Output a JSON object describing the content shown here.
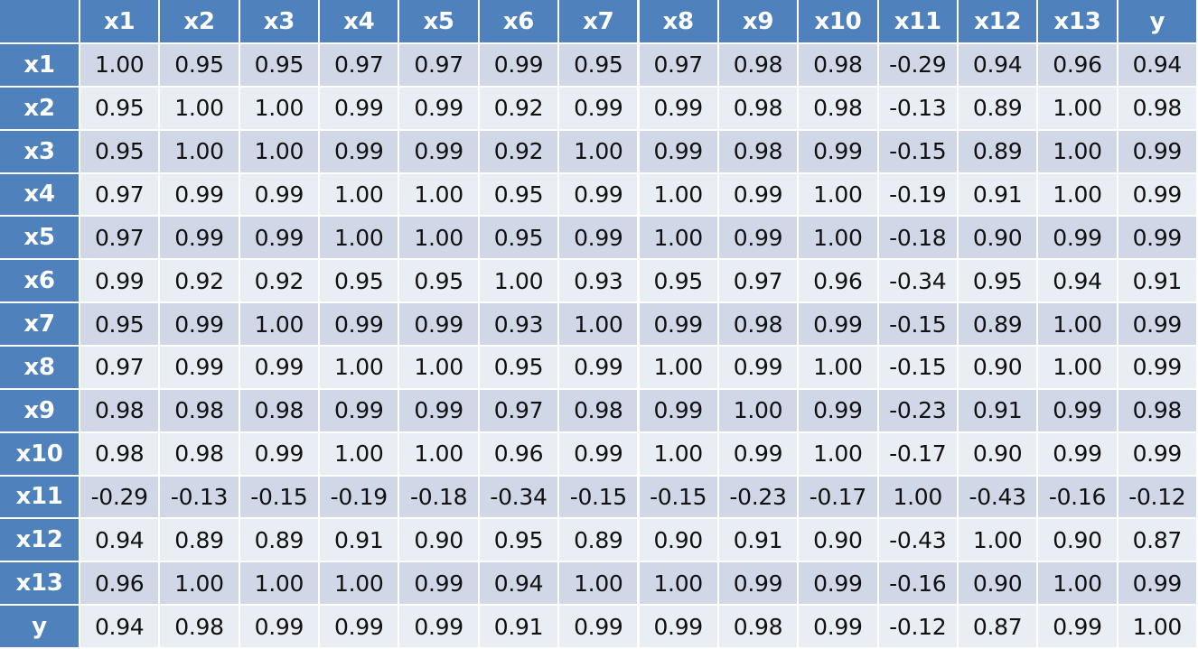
{
  "chart_data": {
    "type": "table",
    "title": "",
    "columns": [
      "x1",
      "x2",
      "x3",
      "x4",
      "x5",
      "x6",
      "x7",
      "x8",
      "x9",
      "x10",
      "x11",
      "x12",
      "x13",
      "y"
    ],
    "rows": [
      "x1",
      "x2",
      "x3",
      "x4",
      "x5",
      "x6",
      "x7",
      "x8",
      "x9",
      "x10",
      "x11",
      "x12",
      "x13",
      "y"
    ],
    "values": [
      [
        "1.00",
        "0.95",
        "0.95",
        "0.97",
        "0.97",
        "0.99",
        "0.95",
        "0.97",
        "0.98",
        "0.98",
        "-0.29",
        "0.94",
        "0.96",
        "0.94"
      ],
      [
        "0.95",
        "1.00",
        "1.00",
        "0.99",
        "0.99",
        "0.92",
        "0.99",
        "0.99",
        "0.98",
        "0.98",
        "-0.13",
        "0.89",
        "1.00",
        "0.98"
      ],
      [
        "0.95",
        "1.00",
        "1.00",
        "0.99",
        "0.99",
        "0.92",
        "1.00",
        "0.99",
        "0.98",
        "0.99",
        "-0.15",
        "0.89",
        "1.00",
        "0.99"
      ],
      [
        "0.97",
        "0.99",
        "0.99",
        "1.00",
        "1.00",
        "0.95",
        "0.99",
        "1.00",
        "0.99",
        "1.00",
        "-0.19",
        "0.91",
        "1.00",
        "0.99"
      ],
      [
        "0.97",
        "0.99",
        "0.99",
        "1.00",
        "1.00",
        "0.95",
        "0.99",
        "1.00",
        "0.99",
        "1.00",
        "-0.18",
        "0.90",
        "0.99",
        "0.99"
      ],
      [
        "0.99",
        "0.92",
        "0.92",
        "0.95",
        "0.95",
        "1.00",
        "0.93",
        "0.95",
        "0.97",
        "0.96",
        "-0.34",
        "0.95",
        "0.94",
        "0.91"
      ],
      [
        "0.95",
        "0.99",
        "1.00",
        "0.99",
        "0.99",
        "0.93",
        "1.00",
        "0.99",
        "0.98",
        "0.99",
        "-0.15",
        "0.89",
        "1.00",
        "0.99"
      ],
      [
        "0.97",
        "0.99",
        "0.99",
        "1.00",
        "1.00",
        "0.95",
        "0.99",
        "1.00",
        "0.99",
        "1.00",
        "-0.15",
        "0.90",
        "1.00",
        "0.99"
      ],
      [
        "0.98",
        "0.98",
        "0.98",
        "0.99",
        "0.99",
        "0.97",
        "0.98",
        "0.99",
        "1.00",
        "0.99",
        "-0.23",
        "0.91",
        "0.99",
        "0.98"
      ],
      [
        "0.98",
        "0.98",
        "0.99",
        "1.00",
        "1.00",
        "0.96",
        "0.99",
        "1.00",
        "0.99",
        "1.00",
        "-0.17",
        "0.90",
        "0.99",
        "0.99"
      ],
      [
        "-0.29",
        "-0.13",
        "-0.15",
        "-0.19",
        "-0.18",
        "-0.34",
        "-0.15",
        "-0.15",
        "-0.23",
        "-0.17",
        "1.00",
        "-0.43",
        "-0.16",
        "-0.12"
      ],
      [
        "0.94",
        "0.89",
        "0.89",
        "0.91",
        "0.90",
        "0.95",
        "0.89",
        "0.90",
        "0.91",
        "0.90",
        "-0.43",
        "1.00",
        "0.90",
        "0.87"
      ],
      [
        "0.96",
        "1.00",
        "1.00",
        "1.00",
        "0.99",
        "0.94",
        "1.00",
        "1.00",
        "0.99",
        "0.99",
        "-0.16",
        "0.90",
        "1.00",
        "0.99"
      ],
      [
        "0.94",
        "0.98",
        "0.99",
        "0.99",
        "0.99",
        "0.91",
        "0.99",
        "0.99",
        "0.98",
        "0.99",
        "-0.12",
        "0.87",
        "0.99",
        "1.00"
      ]
    ]
  },
  "colors": {
    "header_bg": "#4f81bd",
    "header_text": "#ffffff",
    "band_dark": "#d0d8e8",
    "band_light": "#e9edf4",
    "cell_text": "#111111",
    "grid_line": "#ffffff"
  }
}
